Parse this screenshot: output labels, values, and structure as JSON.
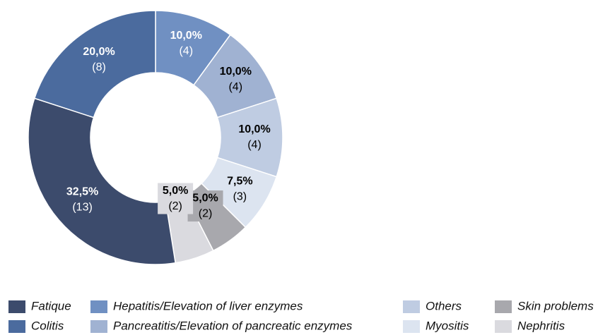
{
  "chart_data": {
    "type": "donut",
    "categories": [
      "Hepatitis/Elevation of liver enzymes",
      "Pancreatitis/Elevation of pancreatic enzymes",
      "Others",
      "Myositis",
      "Skin problems",
      "Nephritis",
      "Fatique",
      "Colitis"
    ],
    "values": [
      10,
      10,
      10,
      7.5,
      5,
      5,
      32.5,
      20
    ],
    "value_labels": [
      "10,0%",
      "10,0%",
      "10,0%",
      "7,5%",
      "5,0%",
      "5,0%",
      "32,5%",
      "20,0%"
    ],
    "counts": [
      4,
      4,
      4,
      3,
      2,
      2,
      13,
      8
    ],
    "count_labels": [
      "(4)",
      "(4)",
      "(4)",
      "(3)",
      "(2)",
      "(2)",
      "(13)",
      "(8)"
    ],
    "colors": [
      "#7090c2",
      "#a0b2d2",
      "#bfcce2",
      "#dce4f0",
      "#a8a8ad",
      "#dadadf",
      "#3c4b6c",
      "#4b6b9e"
    ]
  }
}
